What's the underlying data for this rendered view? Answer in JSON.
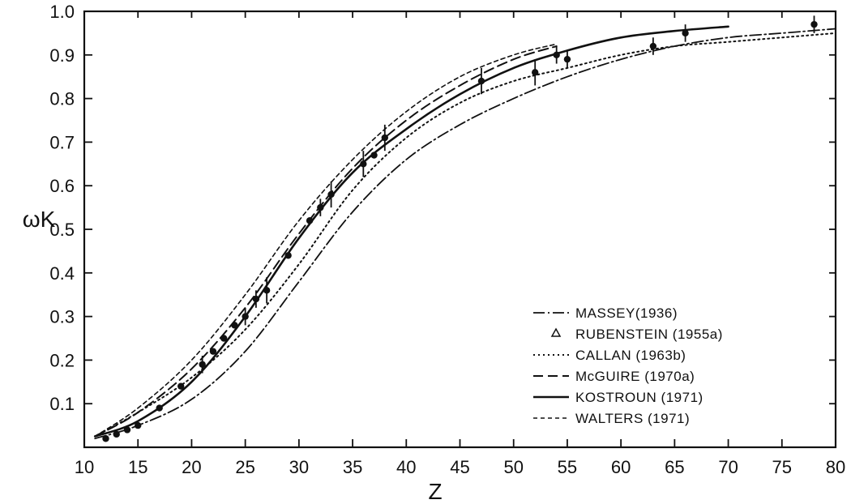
{
  "chart_data": {
    "type": "line",
    "title": "",
    "xlabel": "Z",
    "ylabel": "ωK",
    "xlim": [
      10,
      80
    ],
    "ylim": [
      0.0,
      1.0
    ],
    "grid": false,
    "legend_position": "bottom-right",
    "x_ticks": [
      10,
      15,
      20,
      25,
      30,
      35,
      40,
      45,
      50,
      55,
      60,
      65,
      70,
      75,
      80
    ],
    "x_tick_labels": [
      "10",
      "15",
      "20",
      "25",
      "30",
      "35",
      "40",
      "45",
      "50",
      "55",
      "60",
      "65",
      "70",
      "75",
      "80"
    ],
    "y_ticks": [
      0.1,
      0.2,
      0.3,
      0.4,
      0.5,
      0.6,
      0.7,
      0.8,
      0.9,
      1.0
    ],
    "y_tick_labels": [
      "0.1",
      "0.2",
      "0.3",
      "0.4",
      "0.5",
      "0.6",
      "0.7",
      "0.8",
      "0.9",
      "1.0"
    ],
    "series": [
      {
        "name": "MASSEY(1936)",
        "style": "dash-dot",
        "x": [
          11,
          15,
          20,
          25,
          30,
          35,
          40,
          45,
          50,
          55,
          60,
          65,
          70,
          75,
          80
        ],
        "y": [
          0.02,
          0.05,
          0.11,
          0.22,
          0.38,
          0.54,
          0.66,
          0.74,
          0.8,
          0.85,
          0.89,
          0.92,
          0.94,
          0.95,
          0.96
        ]
      },
      {
        "name": "RUBENSTEIN (1955a)",
        "style": "triangles",
        "x": [
          12,
          13,
          14,
          15,
          17,
          19,
          21,
          22,
          23,
          24,
          25,
          26,
          27,
          29,
          31,
          32,
          33,
          36,
          37,
          38,
          47,
          52,
          54,
          55,
          63,
          66,
          78
        ],
        "y": [
          0.02,
          0.03,
          0.04,
          0.05,
          0.09,
          0.14,
          0.19,
          0.22,
          0.25,
          0.28,
          0.3,
          0.34,
          0.36,
          0.44,
          0.52,
          0.55,
          0.58,
          0.65,
          0.67,
          0.71,
          0.84,
          0.86,
          0.9,
          0.89,
          0.92,
          0.95,
          0.97
        ],
        "err": [
          0,
          0,
          0,
          0,
          0,
          0,
          0.02,
          0,
          0,
          0,
          0.02,
          0.02,
          0.03,
          0,
          0,
          0.02,
          0.03,
          0.03,
          0,
          0.03,
          0.03,
          0.03,
          0.02,
          0.02,
          0.02,
          0.02,
          0.02
        ]
      },
      {
        "name": "CALLAN (1963b)",
        "style": "dotted",
        "x": [
          11,
          15,
          20,
          25,
          30,
          35,
          40,
          45,
          50,
          55,
          60,
          65,
          70,
          75,
          80
        ],
        "y": [
          0.025,
          0.08,
          0.16,
          0.27,
          0.42,
          0.59,
          0.71,
          0.79,
          0.84,
          0.87,
          0.9,
          0.92,
          0.93,
          0.94,
          0.95
        ]
      },
      {
        "name": "McGUIRE (1970a)",
        "style": "dashed",
        "x": [
          11,
          15,
          20,
          25,
          30,
          35,
          40,
          45,
          50,
          54
        ],
        "y": [
          0.025,
          0.08,
          0.18,
          0.32,
          0.49,
          0.64,
          0.75,
          0.83,
          0.89,
          0.92
        ]
      },
      {
        "name": "KOSTROUN (1971)",
        "style": "solid",
        "x": [
          11,
          15,
          20,
          25,
          30,
          35,
          40,
          45,
          50,
          55,
          60,
          65,
          70
        ],
        "y": [
          0.025,
          0.06,
          0.15,
          0.3,
          0.48,
          0.63,
          0.73,
          0.81,
          0.87,
          0.91,
          0.94,
          0.955,
          0.965
        ]
      },
      {
        "name": "WALTERS (1971)",
        "style": "short-dash",
        "x": [
          11,
          15,
          20,
          25,
          30,
          35,
          40,
          45,
          50,
          54
        ],
        "y": [
          0.025,
          0.09,
          0.2,
          0.35,
          0.52,
          0.66,
          0.77,
          0.85,
          0.9,
          0.925
        ]
      }
    ]
  }
}
